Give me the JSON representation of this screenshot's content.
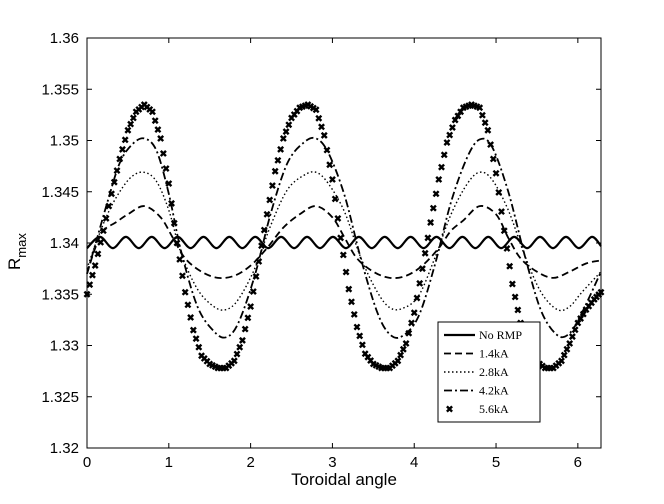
{
  "chart_data": {
    "type": "line",
    "xlabel": "Toroidal angle",
    "ylabel_main": "R",
    "ylabel_sub": "max",
    "xlim": [
      0,
      6.283
    ],
    "ylim": [
      1.32,
      1.36
    ],
    "xticks": [
      0,
      1,
      2,
      3,
      4,
      5,
      6
    ],
    "xtick_labels": [
      "0",
      "1",
      "2",
      "3",
      "4",
      "5",
      "6"
    ],
    "yticks": [
      1.32,
      1.325,
      1.33,
      1.335,
      1.34,
      1.345,
      1.35,
      1.355,
      1.36
    ],
    "ytick_labels": [
      "1.32",
      "1.325",
      "1.33",
      "1.335",
      "1.34",
      "1.345",
      "1.35",
      "1.355",
      "1.36"
    ],
    "grid": false,
    "legend_position": "bottom-right",
    "series": [
      {
        "name": "No RMP",
        "style": "solid",
        "x": [
          0,
          0.158,
          0.316,
          0.475,
          0.633,
          0.791,
          0.949,
          1.108,
          1.266,
          1.424,
          1.582,
          1.74,
          1.899,
          2.057,
          2.215,
          2.373,
          2.532,
          2.69,
          2.848,
          3.006,
          3.165,
          3.323,
          3.481,
          3.639,
          3.798,
          3.956,
          4.114,
          4.272,
          4.431,
          4.589,
          4.747,
          4.905,
          5.063,
          5.222,
          5.38,
          5.538,
          5.696,
          5.855,
          6.013,
          6.171,
          6.283
        ],
        "y": [
          1.3395,
          1.3406,
          1.3395,
          1.3406,
          1.3395,
          1.3406,
          1.3395,
          1.3406,
          1.3395,
          1.3406,
          1.3395,
          1.3406,
          1.3395,
          1.3406,
          1.3395,
          1.3406,
          1.3395,
          1.3406,
          1.3395,
          1.3406,
          1.3395,
          1.3406,
          1.3395,
          1.3406,
          1.3395,
          1.3406,
          1.3395,
          1.3406,
          1.3395,
          1.3406,
          1.3395,
          1.3406,
          1.3395,
          1.3406,
          1.3395,
          1.3406,
          1.3395,
          1.3406,
          1.3395,
          1.3406,
          1.3397
        ]
      },
      {
        "name": "1.4kA",
        "style": "dashed",
        "x": [
          0,
          0.1,
          0.2,
          0.35,
          0.5,
          0.7,
          0.9,
          1.05,
          1.2,
          1.4,
          1.6,
          1.8,
          2.0,
          2.2,
          2.4,
          2.6,
          2.8,
          3.0,
          3.15,
          3.3,
          3.5,
          3.7,
          3.9,
          4.1,
          4.3,
          4.45,
          4.6,
          4.8,
          5.0,
          5.15,
          5.3,
          5.5,
          5.7,
          5.9,
          6.1,
          6.283
        ],
        "y": [
          1.337,
          1.3395,
          1.3412,
          1.342,
          1.3428,
          1.3436,
          1.3425,
          1.3405,
          1.3385,
          1.3372,
          1.3366,
          1.3368,
          1.3378,
          1.3395,
          1.3415,
          1.3428,
          1.3436,
          1.3425,
          1.3405,
          1.3385,
          1.3372,
          1.3366,
          1.3368,
          1.3378,
          1.3395,
          1.3412,
          1.3422,
          1.3436,
          1.3428,
          1.3405,
          1.3385,
          1.3372,
          1.3366,
          1.3372,
          1.338,
          1.3383
        ]
      },
      {
        "name": "2.8kA",
        "style": "dotted",
        "x": [
          0,
          0.1,
          0.25,
          0.4,
          0.55,
          0.7,
          0.85,
          1.0,
          1.15,
          1.35,
          1.55,
          1.7,
          1.85,
          2.05,
          2.25,
          2.45,
          2.65,
          2.8,
          2.95,
          3.15,
          3.35,
          3.55,
          3.7,
          3.85,
          4.05,
          4.25,
          4.45,
          4.65,
          4.8,
          4.95,
          5.15,
          5.35,
          5.55,
          5.75,
          5.9,
          6.05,
          6.283
        ],
        "y": [
          1.3375,
          1.3398,
          1.3428,
          1.345,
          1.3465,
          1.3469,
          1.346,
          1.3432,
          1.339,
          1.3355,
          1.3338,
          1.3335,
          1.3345,
          1.3375,
          1.3418,
          1.3452,
          1.3466,
          1.3469,
          1.3458,
          1.343,
          1.3385,
          1.3352,
          1.3337,
          1.3336,
          1.3348,
          1.3385,
          1.3428,
          1.3458,
          1.3469,
          1.3462,
          1.3432,
          1.3388,
          1.3352,
          1.3335,
          1.3338,
          1.3352,
          1.3372
        ]
      },
      {
        "name": "4.2kA",
        "style": "dashdot",
        "x": [
          0,
          0.1,
          0.25,
          0.4,
          0.55,
          0.7,
          0.85,
          1.0,
          1.15,
          1.35,
          1.55,
          1.7,
          1.85,
          2.05,
          2.25,
          2.45,
          2.65,
          2.8,
          2.95,
          3.15,
          3.35,
          3.55,
          3.7,
          3.85,
          4.05,
          4.25,
          4.45,
          4.65,
          4.8,
          4.95,
          5.15,
          5.35,
          5.55,
          5.75,
          5.9,
          6.05,
          6.283
        ],
        "y": [
          1.337,
          1.3398,
          1.344,
          1.3478,
          1.3496,
          1.3502,
          1.349,
          1.3448,
          1.3392,
          1.3338,
          1.3314,
          1.3308,
          1.3322,
          1.3368,
          1.343,
          1.3478,
          1.3498,
          1.3502,
          1.3488,
          1.3446,
          1.3384,
          1.3332,
          1.3311,
          1.3309,
          1.3328,
          1.3378,
          1.344,
          1.3484,
          1.3501,
          1.3494,
          1.345,
          1.3388,
          1.3334,
          1.331,
          1.3312,
          1.3332,
          1.3372
        ]
      },
      {
        "name": "5.6kA",
        "style": "markers",
        "x": [
          0,
          0.1,
          0.2,
          0.3,
          0.4,
          0.5,
          0.6,
          0.7,
          0.8,
          0.9,
          1.0,
          1.1,
          1.2,
          1.3,
          1.4,
          1.5,
          1.6,
          1.7,
          1.8,
          1.9,
          2.0,
          2.1,
          2.2,
          2.3,
          2.4,
          2.5,
          2.6,
          2.7,
          2.8,
          2.9,
          3.0,
          3.1,
          3.2,
          3.3,
          3.4,
          3.5,
          3.6,
          3.7,
          3.8,
          3.9,
          4.0,
          4.1,
          4.2,
          4.3,
          4.4,
          4.5,
          4.6,
          4.7,
          4.8,
          4.9,
          5.0,
          5.1,
          5.2,
          5.3,
          5.4,
          5.5,
          5.6,
          5.7,
          5.8,
          5.9,
          6.0,
          6.1,
          6.2,
          6.283
        ],
        "y": [
          1.335,
          1.3378,
          1.3412,
          1.3448,
          1.3482,
          1.351,
          1.3528,
          1.3535,
          1.3528,
          1.3502,
          1.3458,
          1.34,
          1.3352,
          1.3315,
          1.329,
          1.3282,
          1.3278,
          1.3278,
          1.3285,
          1.3305,
          1.3338,
          1.3382,
          1.3428,
          1.347,
          1.3502,
          1.3522,
          1.3532,
          1.3535,
          1.353,
          1.3505,
          1.3462,
          1.3405,
          1.3355,
          1.3318,
          1.3292,
          1.3282,
          1.3278,
          1.3278,
          1.3285,
          1.3302,
          1.3332,
          1.3375,
          1.342,
          1.3462,
          1.3498,
          1.352,
          1.3532,
          1.3535,
          1.3532,
          1.351,
          1.3468,
          1.3412,
          1.336,
          1.3322,
          1.3295,
          1.3284,
          1.3278,
          1.3278,
          1.3285,
          1.3302,
          1.3322,
          1.3335,
          1.3345,
          1.3352
        ]
      }
    ]
  }
}
